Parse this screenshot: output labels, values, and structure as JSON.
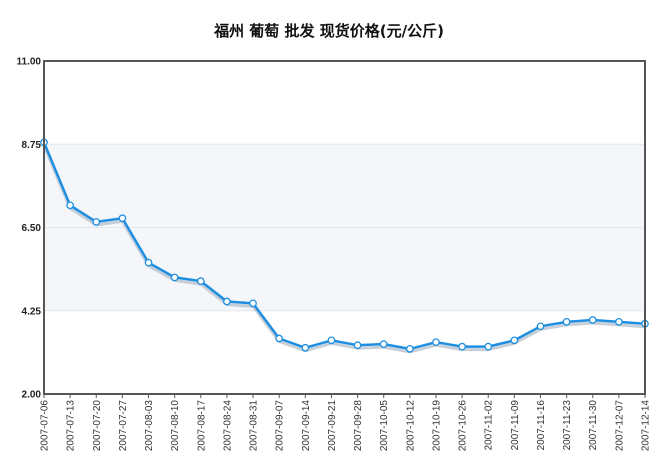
{
  "chart_data": {
    "type": "line",
    "title": "福州  葡萄  批发  现货价格(元/公斤)",
    "xlabel": "",
    "ylabel": "",
    "ylim": [
      2.0,
      11.0
    ],
    "yticks": [
      "2.00",
      "4.25",
      "6.50",
      "8.75",
      "11.00"
    ],
    "grid": true,
    "legend": "none",
    "colors": {
      "line": "#1e8fe0",
      "shadow": "#b9c3cf",
      "marker_fill": "#ffffff",
      "band": "#f4f6fa"
    },
    "x": [
      "2007-07-06",
      "2007-07-13",
      "2007-07-20",
      "2007-07-27",
      "2007-08-03",
      "2007-08-10",
      "2007-08-17",
      "2007-08-24",
      "2007-08-31",
      "2007-09-07",
      "2007-09-14",
      "2007-09-21",
      "2007-09-28",
      "2007-10-05",
      "2007-10-12",
      "2007-10-19",
      "2007-10-26",
      "2007-11-02",
      "2007-11-09",
      "2007-11-16",
      "2007-11-23",
      "2007-11-30",
      "2007-12-07",
      "2007-12-14"
    ],
    "series": [
      {
        "values": [
          8.8,
          7.1,
          6.65,
          6.75,
          5.55,
          5.15,
          5.05,
          4.5,
          4.45,
          3.5,
          3.25,
          3.45,
          3.32,
          3.35,
          3.22,
          3.4,
          3.28,
          3.28,
          3.45,
          3.83,
          3.95,
          4.0,
          3.95,
          3.9
        ]
      }
    ]
  }
}
